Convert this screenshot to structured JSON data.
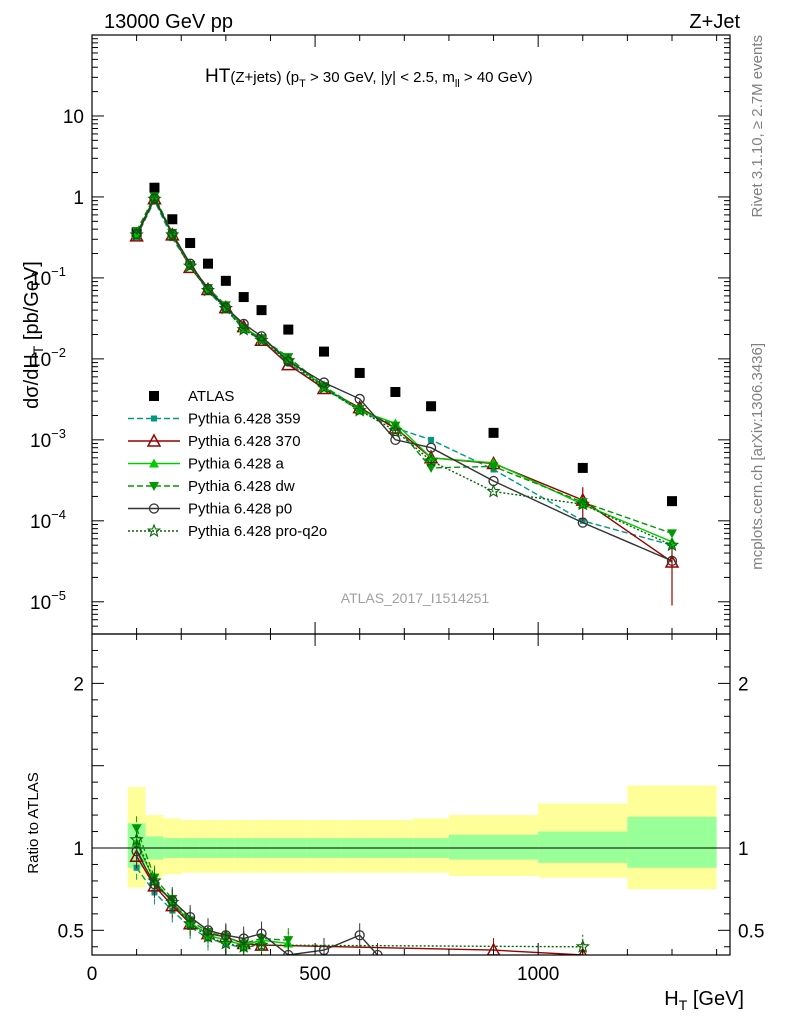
{
  "header": {
    "left": "13000 GeV pp",
    "right": "Z+Jet"
  },
  "plot_title": {
    "main": "HT",
    "sub1": "(Z+jets) (p",
    "sub_t": "T",
    "sub2": " > 30 GeV, |y| < 2.5, m",
    "sub_ll": "ll",
    "sub3": " > 40 GeV)"
  },
  "side_text": {
    "rivet": "Rivet 3.1.10, ≥ 2.7M events",
    "mcplots": "mcplots.cern.ch [arXiv:1306.3436]"
  },
  "watermark": "ATLAS_2017_I1514251",
  "colors": {
    "atlas": "#000000",
    "p359": "#009980",
    "p370": "#990000",
    "pa": "#00cc00",
    "pdw": "#009900",
    "pp0": "#333333",
    "ppro": "#006600",
    "band_outer": "#ffff99",
    "band_inner": "#99ff99"
  },
  "chart_data": [
    {
      "type": "scatter",
      "ylabel_main": "dσ/dH",
      "ylabel_sub": "T",
      "ylabel_unit": " [pb/GeV]",
      "yscale": "log",
      "ylim": [
        4e-06,
        100
      ],
      "xlim": [
        0,
        1430
      ],
      "y_ticks": [
        {
          "v": 10,
          "label": "10"
        },
        {
          "v": 1,
          "label": "1"
        },
        {
          "v": 0.1,
          "base": "10",
          "exp": "−1"
        },
        {
          "v": 0.01,
          "base": "10",
          "exp": "−2"
        },
        {
          "v": 0.001,
          "base": "10",
          "exp": "−3"
        },
        {
          "v": 0.0001,
          "base": "10",
          "exp": "−4"
        },
        {
          "v": 1e-05,
          "base": "10",
          "exp": "−5"
        }
      ],
      "series": [
        {
          "name": "ATLAS",
          "key": "atlas",
          "marker": "square",
          "style": "none",
          "x": [
            100,
            140,
            180,
            220,
            260,
            300,
            340,
            380,
            440,
            520,
            600,
            680,
            760,
            900,
            1100,
            1300
          ],
          "y": [
            0.36,
            1.3,
            0.53,
            0.27,
            0.15,
            0.092,
            0.058,
            0.04,
            0.023,
            0.0123,
            0.0067,
            0.0039,
            0.0026,
            0.00122,
            0.00045,
            0.000175
          ]
        },
        {
          "name": "Pythia 6.428 359",
          "key": "p359",
          "marker": "smallsquare",
          "style": "dash",
          "x": [
            100,
            140,
            180,
            220,
            260,
            300,
            340,
            380,
            440,
            520,
            600,
            680,
            760,
            900,
            1100,
            1300
          ],
          "y": [
            0.32,
            0.9,
            0.31,
            0.14,
            0.068,
            0.041,
            0.023,
            0.017,
            0.009,
            0.0043,
            0.0023,
            0.0014,
            0.001,
            0.00043,
            0.0001,
            5e-05
          ]
        },
        {
          "name": "Pythia 6.428 370",
          "key": "p370",
          "marker": "triangle-open",
          "style": "solid",
          "x": [
            100,
            140,
            180,
            220,
            260,
            300,
            340,
            380,
            440,
            520,
            600,
            680,
            760,
            900,
            1100,
            1300
          ],
          "y": [
            0.33,
            0.95,
            0.34,
            0.135,
            0.072,
            0.043,
            0.025,
            0.017,
            0.0085,
            0.0043,
            0.0025,
            0.0014,
            0.0006,
            0.00051,
            0.00018,
            3.1e-05
          ],
          "yerr": [
            0,
            0,
            0,
            0,
            0,
            0,
            0,
            0,
            0,
            0,
            0,
            0.0002,
            0.00015,
            0.0001,
            8e-05,
            2.2e-05
          ]
        },
        {
          "name": "Pythia 6.428 a",
          "key": "pa",
          "marker": "triangle",
          "style": "solid",
          "x": [
            100,
            140,
            180,
            220,
            260,
            300,
            340,
            380,
            440,
            520,
            600,
            680,
            760,
            900,
            1100,
            1300
          ],
          "y": [
            0.35,
            0.98,
            0.35,
            0.14,
            0.074,
            0.044,
            0.024,
            0.018,
            0.01,
            0.0045,
            0.0023,
            0.0016,
            0.0006,
            0.00052,
            0.00016,
            5.5e-05
          ]
        },
        {
          "name": "Pythia 6.428 dw",
          "key": "pdw",
          "marker": "triangle-down",
          "style": "dash",
          "x": [
            100,
            140,
            180,
            220,
            260,
            300,
            340,
            380,
            440,
            520,
            600,
            680,
            760,
            900,
            1100,
            1300
          ],
          "y": [
            0.38,
            1.02,
            0.36,
            0.145,
            0.075,
            0.046,
            0.024,
            0.018,
            0.0105,
            0.0046,
            0.0024,
            0.0015,
            0.00045,
            0.00047,
            0.00017,
            7e-05
          ]
        },
        {
          "name": "Pythia 6.428 p0",
          "key": "pp0",
          "marker": "circle-open",
          "style": "solid",
          "x": [
            100,
            140,
            180,
            220,
            260,
            300,
            340,
            380,
            440,
            520,
            600,
            680,
            760,
            900,
            1100,
            1300
          ],
          "y": [
            0.35,
            0.96,
            0.35,
            0.15,
            0.073,
            0.043,
            0.027,
            0.019,
            0.0093,
            0.0051,
            0.0032,
            0.001,
            0.0008,
            0.00031,
            9.5e-05,
            3.2e-05
          ]
        },
        {
          "name": "Pythia 6.428 pro-q2o",
          "key": "ppro",
          "marker": "star",
          "style": "dot",
          "x": [
            100,
            140,
            180,
            220,
            260,
            300,
            340,
            380,
            440,
            520,
            600,
            680,
            760,
            900,
            1100,
            1300
          ],
          "y": [
            0.34,
            0.94,
            0.34,
            0.14,
            0.07,
            0.042,
            0.023,
            0.017,
            0.0095,
            0.0044,
            0.0023,
            0.0013,
            0.00055,
            0.00023,
            0.00016,
            5e-05
          ]
        }
      ]
    },
    {
      "type": "line",
      "ylabel": "Ratio to ATLAS",
      "xlabel_main": "H",
      "xlabel_sub": "T",
      "xlabel_unit": " [GeV]",
      "ylim": [
        0.35,
        2.3
      ],
      "xlim": [
        0,
        1430
      ],
      "x_ticks": [
        {
          "v": 0,
          "label": "0"
        },
        {
          "v": 500,
          "label": "500"
        },
        {
          "v": 1000,
          "label": "1000"
        }
      ],
      "y_ticks": [
        {
          "v": 0.5,
          "label": "0.5"
        },
        {
          "v": 1,
          "label": "1"
        },
        {
          "v": 2,
          "label": "2"
        }
      ],
      "band_edges": [
        80,
        120,
        160,
        200,
        240,
        280,
        320,
        360,
        400,
        480,
        560,
        640,
        720,
        800,
        1000,
        1200,
        1400
      ],
      "band_outer_lo": [
        0.76,
        0.82,
        0.84,
        0.85,
        0.85,
        0.85,
        0.85,
        0.85,
        0.85,
        0.85,
        0.85,
        0.85,
        0.85,
        0.83,
        0.82,
        0.75
      ],
      "band_outer_hi": [
        1.37,
        1.2,
        1.18,
        1.17,
        1.17,
        1.17,
        1.17,
        1.17,
        1.17,
        1.17,
        1.17,
        1.17,
        1.18,
        1.2,
        1.27,
        1.38
      ],
      "band_inner_lo": [
        0.88,
        0.93,
        0.94,
        0.94,
        0.94,
        0.94,
        0.94,
        0.94,
        0.94,
        0.94,
        0.94,
        0.94,
        0.94,
        0.93,
        0.91,
        0.88
      ],
      "band_inner_hi": [
        1.15,
        1.07,
        1.06,
        1.06,
        1.06,
        1.06,
        1.06,
        1.06,
        1.06,
        1.06,
        1.06,
        1.06,
        1.06,
        1.08,
        1.1,
        1.19
      ],
      "series": [
        {
          "key": "p359",
          "x": [
            100,
            140,
            180,
            220,
            260,
            300,
            340,
            380
          ],
          "y": [
            0.88,
            0.73,
            0.62,
            0.52,
            0.45,
            0.42,
            0.39,
            0.42
          ]
        },
        {
          "key": "p370",
          "x": [
            100,
            140,
            180,
            220,
            260,
            300,
            340,
            380,
            900,
            1100
          ],
          "y": [
            0.95,
            0.77,
            0.65,
            0.54,
            0.48,
            0.46,
            0.42,
            0.41,
            0.38,
            0.35
          ]
        },
        {
          "key": "pa",
          "x": [
            100,
            140,
            180,
            220,
            260,
            300,
            340,
            380,
            440
          ],
          "y": [
            1.03,
            0.8,
            0.67,
            0.55,
            0.47,
            0.44,
            0.41,
            0.44,
            0.42
          ]
        },
        {
          "key": "pdw",
          "x": [
            100,
            140,
            180,
            220,
            260,
            300,
            340,
            380,
            440
          ],
          "y": [
            1.12,
            0.82,
            0.69,
            0.56,
            0.49,
            0.46,
            0.42,
            0.45,
            0.44
          ]
        },
        {
          "key": "pp0",
          "x": [
            100,
            140,
            180,
            220,
            260,
            300,
            340,
            380,
            440,
            520,
            600,
            640
          ],
          "y": [
            0.98,
            0.78,
            0.68,
            0.58,
            0.5,
            0.47,
            0.45,
            0.48,
            0.35,
            0.38,
            0.47,
            0.35
          ]
        },
        {
          "key": "ppro",
          "x": [
            100,
            140,
            180,
            220,
            260,
            300,
            340,
            380,
            1100
          ],
          "y": [
            1.05,
            0.8,
            0.67,
            0.54,
            0.46,
            0.42,
            0.4,
            0.41,
            0.4
          ]
        }
      ]
    }
  ]
}
